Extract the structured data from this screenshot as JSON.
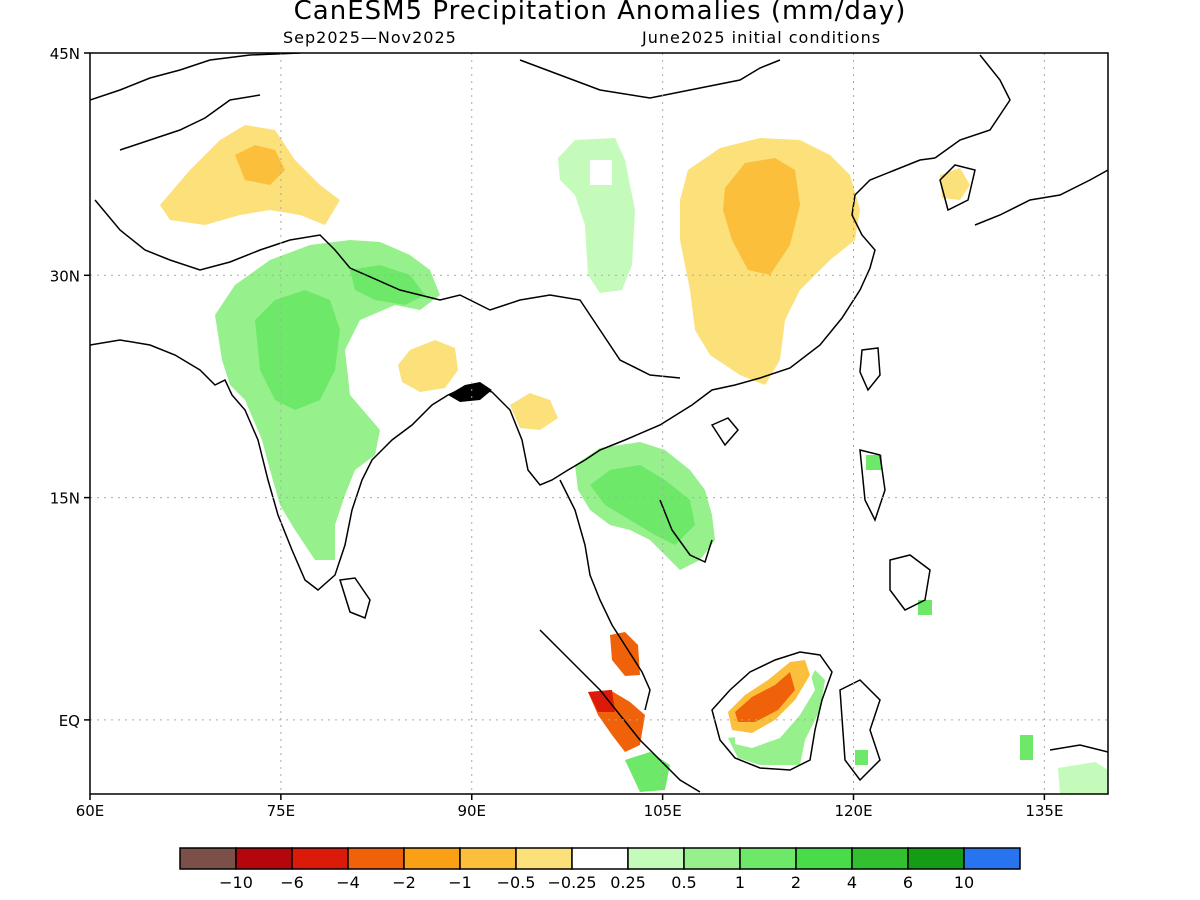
{
  "title": "CanESM5 Precipitation Anomalies (mm/day)",
  "subtitle_left": "Sep2025—Nov2025",
  "subtitle_right": "June2025 initial conditions",
  "map_data": {
    "lon_range": [
      60,
      140
    ],
    "lat_range": [
      -5,
      45
    ],
    "lon_ticks": [
      "60E",
      "75E",
      "90E",
      "105E",
      "120E",
      "135E"
    ],
    "lon_tick_values": [
      60,
      75,
      90,
      105,
      120,
      135
    ],
    "lat_ticks": [
      "45N",
      "30N",
      "15N",
      "EQ"
    ],
    "lat_tick_values": [
      45,
      30,
      15,
      0
    ],
    "gridlines": "dotted"
  },
  "colorbar": {
    "colors": [
      "#7a5048",
      "#b4060c",
      "#dc1a0a",
      "#f0620a",
      "#faa014",
      "#fbbf3c",
      "#fce07a",
      "#ffffff",
      "#c4fbbb",
      "#96f08c",
      "#6ee868",
      "#48dc48",
      "#30c030",
      "#149c14",
      "#2874f0"
    ],
    "labels": [
      "-10",
      "-6",
      "-4",
      "-2",
      "-1",
      "-0.5",
      "-0.25",
      "0.25",
      "0.5",
      "1",
      "2",
      "4",
      "6",
      "10"
    ]
  },
  "colors": {
    "dry_light": "#fce07a",
    "dry_mid": "#fbbf3c",
    "dry_strong": "#faa014",
    "dry_orange": "#f0620a",
    "dry_red": "#dc1a0a",
    "wet_light": "#c4fbbb",
    "wet_mid": "#96f08c",
    "wet_strong": "#6ee868",
    "wet_deep": "#48dc48",
    "wet_dark": "#30c030"
  }
}
